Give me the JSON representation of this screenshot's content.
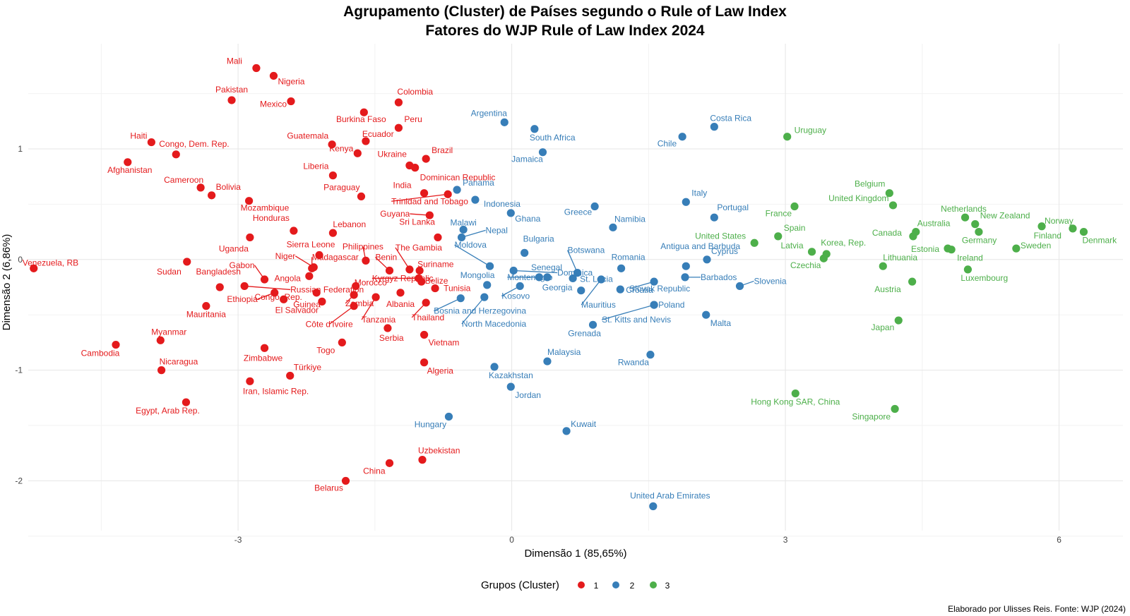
{
  "chart_data": {
    "type": "scatter",
    "title": "Agrupamento (Cluster) de Países segundo o Rule of Law Index",
    "subtitle": "Fatores do WJP Rule of Law Index 2024",
    "xlabel": "Dimensão 1 (85,65%)",
    "ylabel": "Dimensão 2 (6,86%)",
    "xlim": [
      -5.3,
      6.7
    ],
    "ylim": [
      -2.45,
      1.95
    ],
    "xticks": [
      -3,
      0,
      3,
      6
    ],
    "yticks": [
      -2,
      -1,
      0,
      1
    ],
    "grid": true,
    "legend": {
      "title": "Grupos (Cluster)",
      "position": "bottom"
    },
    "caption": "Elaborado por Ulisses Reis. Fonte: WJP (2024)",
    "colors": {
      "1": "#e41a1c",
      "2": "#377eb8",
      "3": "#4daf4a"
    },
    "series": [
      {
        "name": "1",
        "points": [
          {
            "label": "Mali",
            "x": -2.8,
            "y": 1.73
          },
          {
            "label": "Nigeria",
            "x": -2.61,
            "y": 1.66
          },
          {
            "label": "Pakistan",
            "x": -3.07,
            "y": 1.44
          },
          {
            "label": "Mexico",
            "x": -2.42,
            "y": 1.43
          },
          {
            "label": "Colombia",
            "x": -1.24,
            "y": 1.42
          },
          {
            "label": "Burkina Faso",
            "x": -1.62,
            "y": 1.33
          },
          {
            "label": "Peru",
            "x": -1.24,
            "y": 1.19
          },
          {
            "label": "Haiti",
            "x": -3.95,
            "y": 1.06
          },
          {
            "label": "Guatemala",
            "x": -1.97,
            "y": 1.04
          },
          {
            "label": "Ecuador",
            "x": -1.6,
            "y": 1.07
          },
          {
            "label": "Congo, Dem. Rep.",
            "x": -3.68,
            "y": 0.95
          },
          {
            "label": "Kenya",
            "x": -1.69,
            "y": 0.96
          },
          {
            "label": "Brazil",
            "x": -0.94,
            "y": 0.91
          },
          {
            "label": "Afghanistan",
            "x": -4.21,
            "y": 0.88
          },
          {
            "label": "Ukraine",
            "x": -1.12,
            "y": 0.85
          },
          {
            "label": "Dominican Republic",
            "x": -1.06,
            "y": 0.83
          },
          {
            "label": "Liberia",
            "x": -1.96,
            "y": 0.76
          },
          {
            "label": "Cameroon",
            "x": -3.41,
            "y": 0.65
          },
          {
            "label": "Bolivia",
            "x": -3.29,
            "y": 0.58
          },
          {
            "label": "Paraguay",
            "x": -1.65,
            "y": 0.57
          },
          {
            "label": "India",
            "x": -0.96,
            "y": 0.6
          },
          {
            "label": "Trinidad and Tobago",
            "x": -0.7,
            "y": 0.59
          },
          {
            "label": "Mozambique",
            "x": -2.88,
            "y": 0.53
          },
          {
            "label": "Guyana",
            "x": -0.9,
            "y": 0.4
          },
          {
            "label": "Honduras",
            "x": -2.39,
            "y": 0.26
          },
          {
            "label": "Lebanon",
            "x": -1.96,
            "y": 0.24
          },
          {
            "label": "Sri Lanka",
            "x": -0.81,
            "y": 0.2
          },
          {
            "label": "Uganda",
            "x": -2.87,
            "y": 0.2
          },
          {
            "label": "Sierra Leone",
            "x": -2.11,
            "y": 0.04
          },
          {
            "label": "Philippines",
            "x": -1.6,
            "y": -0.01
          },
          {
            "label": "Venezuela, RB",
            "x": -5.24,
            "y": -0.08
          },
          {
            "label": "Sudan",
            "x": -3.56,
            "y": -0.02
          },
          {
            "label": "Niger",
            "x": -2.17,
            "y": -0.07
          },
          {
            "label": "Madagascar",
            "x": -2.19,
            "y": -0.08
          },
          {
            "label": "The Gambia",
            "x": -1.12,
            "y": -0.09
          },
          {
            "label": "Benin",
            "x": -1.34,
            "y": -0.1
          },
          {
            "label": "Suriname",
            "x": -1.01,
            "y": -0.1
          },
          {
            "label": "Gabon",
            "x": -2.71,
            "y": -0.18
          },
          {
            "label": "Angola",
            "x": -2.22,
            "y": -0.15
          },
          {
            "label": "Kyrgyz Republic",
            "x": -1.02,
            "y": -0.17
          },
          {
            "label": "Belize",
            "x": -0.99,
            "y": -0.2
          },
          {
            "label": "Bangladesh",
            "x": -3.2,
            "y": -0.25
          },
          {
            "label": "Russian Federation",
            "x": -2.93,
            "y": -0.24
          },
          {
            "label": "Morocco",
            "x": -1.71,
            "y": -0.24
          },
          {
            "label": "Tunisia",
            "x": -0.84,
            "y": -0.26
          },
          {
            "label": "Ethiopia",
            "x": -2.6,
            "y": -0.3
          },
          {
            "label": "Congo, Rep.",
            "x": -2.14,
            "y": -0.3
          },
          {
            "label": "Albania",
            "x": -1.22,
            "y": -0.3
          },
          {
            "label": "Zambia",
            "x": -1.73,
            "y": -0.32
          },
          {
            "label": "Tanzania",
            "x": -1.49,
            "y": -0.34
          },
          {
            "label": "Thailand",
            "x": -0.94,
            "y": -0.39
          },
          {
            "label": "El Salvador",
            "x": -2.5,
            "y": -0.36
          },
          {
            "label": "Guinea",
            "x": -2.08,
            "y": -0.38
          },
          {
            "label": "Mauritania",
            "x": -3.35,
            "y": -0.42
          },
          {
            "label": "Côte d'Ivoire",
            "x": -1.73,
            "y": -0.42
          },
          {
            "label": "Serbia",
            "x": -1.36,
            "y": -0.62
          },
          {
            "label": "Vietnam",
            "x": -0.96,
            "y": -0.68
          },
          {
            "label": "Myanmar",
            "x": -3.85,
            "y": -0.73
          },
          {
            "label": "Togo",
            "x": -1.86,
            "y": -0.75
          },
          {
            "label": "Cambodia",
            "x": -4.34,
            "y": -0.77
          },
          {
            "label": "Zimbabwe",
            "x": -2.71,
            "y": -0.8
          },
          {
            "label": "Algeria",
            "x": -0.96,
            "y": -0.93
          },
          {
            "label": "Nicaragua",
            "x": -3.84,
            "y": -1.0
          },
          {
            "label": "Türkiye",
            "x": -2.43,
            "y": -1.05
          },
          {
            "label": "Iran, Islamic Rep.",
            "x": -2.87,
            "y": -1.1
          },
          {
            "label": "Egypt, Arab Rep.",
            "x": -3.57,
            "y": -1.29
          },
          {
            "label": "Uzbekistan",
            "x": -0.98,
            "y": -1.81
          },
          {
            "label": "China",
            "x": -1.34,
            "y": -1.84
          },
          {
            "label": "Belarus",
            "x": -1.82,
            "y": -2.0
          }
        ]
      },
      {
        "name": "2",
        "points": [
          {
            "label": "Argentina",
            "x": -0.08,
            "y": 1.24
          },
          {
            "label": "South Africa",
            "x": 0.25,
            "y": 1.18
          },
          {
            "label": "Costa Rica",
            "x": 2.22,
            "y": 1.2
          },
          {
            "label": "Chile",
            "x": 1.87,
            "y": 1.11
          },
          {
            "label": "Jamaica",
            "x": 0.34,
            "y": 0.97
          },
          {
            "label": "Panama",
            "x": -0.6,
            "y": 0.63
          },
          {
            "label": "Indonesia",
            "x": -0.4,
            "y": 0.54
          },
          {
            "label": "Italy",
            "x": 1.91,
            "y": 0.52
          },
          {
            "label": "Greece",
            "x": 0.91,
            "y": 0.48
          },
          {
            "label": "Ghana",
            "x": -0.01,
            "y": 0.42
          },
          {
            "label": "Portugal",
            "x": 2.22,
            "y": 0.38
          },
          {
            "label": "Namibia",
            "x": 1.11,
            "y": 0.29
          },
          {
            "label": "Malawi",
            "x": -0.53,
            "y": 0.27
          },
          {
            "label": "Nepal",
            "x": -0.55,
            "y": 0.2
          },
          {
            "label": "Bulgaria",
            "x": 0.14,
            "y": 0.06
          },
          {
            "label": "Cyprus",
            "x": 2.14,
            "y": 0.0
          },
          {
            "label": "Moldova",
            "x": -0.24,
            "y": -0.06
          },
          {
            "label": "Dominica",
            "x": 0.02,
            "y": -0.1
          },
          {
            "label": "Botswana",
            "x": 0.72,
            "y": -0.12
          },
          {
            "label": "Romania",
            "x": 1.2,
            "y": -0.08
          },
          {
            "label": "Senegal",
            "x": 0.39,
            "y": -0.16
          },
          {
            "label": "Montenegro",
            "x": 0.3,
            "y": -0.16
          },
          {
            "label": "St. Lucia",
            "x": 0.67,
            "y": -0.17
          },
          {
            "label": "Slovak Republic",
            "x": 1.56,
            "y": -0.2
          },
          {
            "label": "Barbados",
            "x": 1.9,
            "y": -0.16
          },
          {
            "label": "Mongolia",
            "x": -0.27,
            "y": -0.23
          },
          {
            "label": "Kosovo",
            "x": 0.09,
            "y": -0.24
          },
          {
            "label": "Georgia",
            "x": 0.76,
            "y": -0.28
          },
          {
            "label": "Croatia",
            "x": 1.19,
            "y": -0.27
          },
          {
            "label": "Antigua and Barbuda",
            "x": 1.91,
            "y": -0.06
          },
          {
            "label": "Slovenia",
            "x": 2.5,
            "y": -0.24
          },
          {
            "label": "Bosnia and Herzegovina",
            "x": -0.56,
            "y": -0.35
          },
          {
            "label": "North Macedonia",
            "x": -0.3,
            "y": -0.34
          },
          {
            "label": "Mauritius",
            "x": 0.98,
            "y": -0.18
          },
          {
            "label": "Poland",
            "x": 1.56,
            "y": -0.41
          },
          {
            "label": "St. Kitts and Nevis",
            "x": 1.56,
            "y": -0.41
          },
          {
            "label": "Malta",
            "x": 2.13,
            "y": -0.5
          },
          {
            "label": "Grenada",
            "x": 0.89,
            "y": -0.59
          },
          {
            "label": "Malaysia",
            "x": 0.39,
            "y": -0.92
          },
          {
            "label": "Rwanda",
            "x": 1.52,
            "y": -0.86
          },
          {
            "label": "Kazakhstan",
            "x": -0.19,
            "y": -0.97
          },
          {
            "label": "Jordan",
            "x": -0.01,
            "y": -1.15
          },
          {
            "label": "Hungary",
            "x": -0.69,
            "y": -1.42
          },
          {
            "label": "Kuwait",
            "x": 0.6,
            "y": -1.55
          },
          {
            "label": "United Arab Emirates",
            "x": 1.55,
            "y": -2.23
          }
        ]
      },
      {
        "name": "3",
        "points": [
          {
            "label": "Uruguay",
            "x": 3.02,
            "y": 1.11
          },
          {
            "label": "Belgium",
            "x": 4.14,
            "y": 0.6
          },
          {
            "label": "United Kingdom",
            "x": 4.18,
            "y": 0.49
          },
          {
            "label": "France",
            "x": 3.1,
            "y": 0.48
          },
          {
            "label": "Netherlands",
            "x": 4.97,
            "y": 0.38
          },
          {
            "label": "New Zealand",
            "x": 5.08,
            "y": 0.32
          },
          {
            "label": "Norway",
            "x": 5.81,
            "y": 0.3
          },
          {
            "label": "Finland",
            "x": 6.15,
            "y": 0.28
          },
          {
            "label": "Denmark",
            "x": 6.27,
            "y": 0.25
          },
          {
            "label": "Australia",
            "x": 4.43,
            "y": 0.25
          },
          {
            "label": "Canada",
            "x": 4.4,
            "y": 0.21
          },
          {
            "label": "Germany",
            "x": 5.12,
            "y": 0.25
          },
          {
            "label": "Spain",
            "x": 2.92,
            "y": 0.21
          },
          {
            "label": "United States",
            "x": 2.66,
            "y": 0.15
          },
          {
            "label": "Estonia",
            "x": 4.78,
            "y": 0.1
          },
          {
            "label": "Ireland",
            "x": 4.82,
            "y": 0.09
          },
          {
            "label": "Latvia",
            "x": 3.29,
            "y": 0.07
          },
          {
            "label": "Korea, Rep.",
            "x": 3.45,
            "y": 0.05
          },
          {
            "label": "Czechia",
            "x": 3.42,
            "y": 0.01
          },
          {
            "label": "Sweden",
            "x": 5.53,
            "y": 0.1
          },
          {
            "label": "Lithuania",
            "x": 4.07,
            "y": -0.06
          },
          {
            "label": "Luxembourg",
            "x": 5.0,
            "y": -0.09
          },
          {
            "label": "Austria",
            "x": 4.39,
            "y": -0.2
          },
          {
            "label": "Japan",
            "x": 4.24,
            "y": -0.55
          },
          {
            "label": "Hong Kong SAR, China",
            "x": 3.11,
            "y": -1.21
          },
          {
            "label": "Singapore",
            "x": 4.2,
            "y": -1.35
          }
        ]
      }
    ]
  }
}
